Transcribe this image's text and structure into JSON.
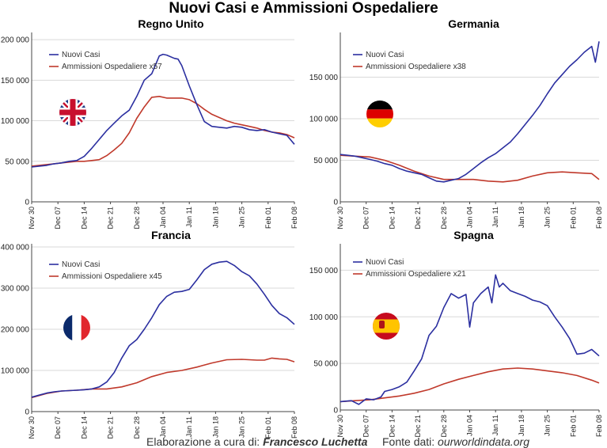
{
  "title": "Nuovi Casi e Ammissioni Ospedaliere",
  "footer": {
    "credit_label": "Elaborazione a cura di:",
    "credit_author": "Francesco Luchetta",
    "source_label": "Fonte dati:",
    "source_value": "ourworldindata.org"
  },
  "colors": {
    "cases": "#2b2fa0",
    "hosp": "#c0392b",
    "grid": "#d9d9d9"
  },
  "chart_data": [
    {
      "type": "line",
      "title": "Regno Unito",
      "flag": "uk-flag",
      "x_ticks": [
        "Nov 30",
        "Dec 07",
        "Dec 14",
        "Dec 21",
        "Dec 28",
        "Jan 04",
        "Jan 11",
        "Jan 18",
        "Jan 25",
        "Feb 01",
        "Feb 08"
      ],
      "y_ticks": [
        "0",
        "50 000",
        "100 000",
        "150 000",
        "200 000"
      ],
      "ylim": [
        0,
        205000
      ],
      "legend": "top-left",
      "series": [
        {
          "name": "Nuovi Casi",
          "color": "#2b2fa0",
          "x": [
            0,
            2,
            4,
            6,
            8,
            10,
            12,
            14,
            16,
            18,
            20,
            22,
            24,
            26,
            28,
            30,
            32,
            34,
            35,
            36,
            38,
            39,
            40,
            42,
            44,
            46,
            48,
            50,
            52,
            54,
            56,
            58,
            60,
            62,
            64,
            66,
            68,
            70
          ],
          "y": [
            43000,
            44000,
            45000,
            47000,
            48000,
            50000,
            51000,
            56000,
            66000,
            77000,
            88000,
            97000,
            106000,
            113000,
            130000,
            150000,
            158000,
            180000,
            182000,
            181000,
            177000,
            176000,
            168000,
            143000,
            120000,
            99000,
            93000,
            92000,
            91000,
            93000,
            92000,
            89000,
            88000,
            89000,
            86000,
            84000,
            82000,
            71000
          ]
        },
        {
          "name": "Ammissioni Ospedaliere x57",
          "color": "#c0392b",
          "x": [
            0,
            2,
            4,
            6,
            8,
            10,
            12,
            14,
            16,
            18,
            20,
            22,
            24,
            26,
            28,
            30,
            32,
            34,
            36,
            38,
            40,
            42,
            44,
            46,
            48,
            50,
            52,
            54,
            56,
            58,
            60,
            62,
            64,
            66,
            68,
            70
          ],
          "y": [
            44000,
            45000,
            46000,
            47000,
            48000,
            49000,
            50000,
            50000,
            51000,
            52000,
            57000,
            64000,
            72000,
            85000,
            103000,
            117000,
            129000,
            130000,
            128000,
            128000,
            128000,
            126000,
            121000,
            114000,
            108000,
            104000,
            100000,
            97000,
            95000,
            93000,
            91000,
            88000,
            86000,
            85000,
            83000,
            79000
          ]
        }
      ]
    },
    {
      "type": "line",
      "title": "Germania",
      "flag": "germany-flag",
      "x_ticks": [
        "Nov 30",
        "Dec 07",
        "Dec 14",
        "Dec 21",
        "Dec 28",
        "Jan 04",
        "Jan 11",
        "Jan 18",
        "Jan 25",
        "Feb 01",
        "Feb 08"
      ],
      "y_ticks": [
        "0",
        "50 000",
        "100 000",
        "150 000"
      ],
      "ylim": [
        0,
        200000
      ],
      "legend": "top-left",
      "series": [
        {
          "name": "Nuovi Casi",
          "color": "#2b2fa0",
          "x": [
            0,
            2,
            4,
            6,
            8,
            10,
            12,
            14,
            16,
            18,
            20,
            22,
            24,
            26,
            28,
            30,
            32,
            34,
            36,
            38,
            40,
            42,
            44,
            46,
            48,
            50,
            52,
            54,
            56,
            58,
            60,
            62,
            64,
            66,
            68,
            69,
            70
          ],
          "y": [
            57000,
            56000,
            55000,
            53000,
            51000,
            49000,
            46000,
            44000,
            40000,
            37000,
            35000,
            33000,
            29000,
            25000,
            24000,
            26000,
            28000,
            33000,
            40000,
            47000,
            53000,
            58000,
            65000,
            72000,
            82000,
            93000,
            104000,
            116000,
            130000,
            143000,
            153000,
            163000,
            171000,
            180000,
            187000,
            168000,
            193000
          ]
        },
        {
          "name": "Ammissioni Ospedaliere x38",
          "color": "#c0392b",
          "x": [
            0,
            4,
            8,
            12,
            16,
            20,
            24,
            28,
            32,
            36,
            40,
            44,
            48,
            52,
            56,
            60,
            64,
            68,
            70
          ],
          "y": [
            56000,
            55000,
            54000,
            50000,
            44000,
            37000,
            31000,
            27000,
            27000,
            27000,
            25000,
            24000,
            26000,
            31000,
            35000,
            36000,
            35000,
            34000,
            27000
          ]
        }
      ]
    },
    {
      "type": "line",
      "title": "Francia",
      "flag": "france-flag",
      "x_ticks": [
        "Nov 30",
        "Dec 07",
        "Dec 14",
        "Dec 21",
        "Dec 28",
        "Jan 04",
        "Jan 11",
        "Jan 18",
        "Jan 25",
        "Feb 01",
        "Feb 08"
      ],
      "y_ticks": [
        "0",
        "100 000",
        "200 000",
        "300 000",
        "400 000"
      ],
      "ylim": [
        0,
        400000
      ],
      "legend": "top-left",
      "series": [
        {
          "name": "Nuovi Casi",
          "color": "#2b2fa0",
          "x": [
            0,
            2,
            4,
            6,
            8,
            10,
            12,
            14,
            16,
            18,
            20,
            22,
            24,
            26,
            28,
            30,
            32,
            34,
            36,
            38,
            40,
            42,
            44,
            46,
            48,
            50,
            52,
            54,
            56,
            58,
            60,
            62,
            64,
            66,
            68,
            70
          ],
          "y": [
            35000,
            40000,
            45000,
            48000,
            50000,
            51000,
            52000,
            53000,
            55000,
            60000,
            72000,
            95000,
            130000,
            160000,
            175000,
            200000,
            228000,
            260000,
            280000,
            290000,
            292000,
            297000,
            320000,
            345000,
            358000,
            363000,
            365000,
            355000,
            340000,
            330000,
            310000,
            285000,
            258000,
            238000,
            228000,
            212000
          ]
        },
        {
          "name": "Ammissioni Ospedaliere x45",
          "color": "#c0392b",
          "x": [
            0,
            4,
            8,
            12,
            16,
            20,
            24,
            28,
            32,
            36,
            40,
            44,
            48,
            52,
            56,
            60,
            62,
            64,
            66,
            68,
            70
          ],
          "y": [
            34000,
            44000,
            50000,
            52000,
            55000,
            55000,
            60000,
            70000,
            85000,
            95000,
            100000,
            108000,
            118000,
            126000,
            127000,
            125000,
            125000,
            130000,
            128000,
            127000,
            121000
          ]
        }
      ]
    },
    {
      "type": "line",
      "title": "Spagna",
      "flag": "spain-flag",
      "x_ticks": [
        "Nov 30",
        "Dec 07",
        "Dec 14",
        "Dec 21",
        "Dec 28",
        "Jan 04",
        "Jan 11",
        "Jan 18",
        "Jan 25",
        "Feb 01",
        "Feb 08"
      ],
      "y_ticks": [
        "0",
        "50 000",
        "100 000",
        "150 000"
      ],
      "ylim": [
        0,
        175000
      ],
      "legend": "top-left",
      "series": [
        {
          "name": "Nuovi Casi",
          "color": "#2b2fa0",
          "x": [
            0,
            3,
            5,
            7,
            9,
            11,
            12,
            14,
            16,
            18,
            20,
            22,
            24,
            26,
            28,
            30,
            32,
            34,
            35,
            36,
            38,
            40,
            41,
            42,
            43,
            44,
            46,
            48,
            50,
            52,
            54,
            56,
            58,
            60,
            62,
            64,
            66,
            68,
            70
          ],
          "y": [
            9000,
            10000,
            6000,
            12000,
            11000,
            14000,
            20000,
            22000,
            25000,
            30000,
            42000,
            55000,
            80000,
            90000,
            110000,
            125000,
            120000,
            124000,
            89000,
            115000,
            125000,
            132000,
            115000,
            145000,
            132000,
            136000,
            128000,
            125000,
            122000,
            118000,
            116000,
            112000,
            100000,
            89000,
            77000,
            60000,
            61000,
            65000,
            58000
          ]
        },
        {
          "name": "Ammissioni Ospedaliere x21",
          "color": "#c0392b",
          "x": [
            0,
            4,
            8,
            12,
            16,
            20,
            24,
            28,
            32,
            36,
            40,
            44,
            48,
            52,
            56,
            60,
            64,
            68,
            70
          ],
          "y": [
            9000,
            10000,
            11000,
            13000,
            15000,
            18000,
            22000,
            28000,
            33000,
            37000,
            41000,
            44000,
            45000,
            44000,
            42000,
            40000,
            37000,
            32000,
            29000
          ]
        }
      ]
    }
  ]
}
